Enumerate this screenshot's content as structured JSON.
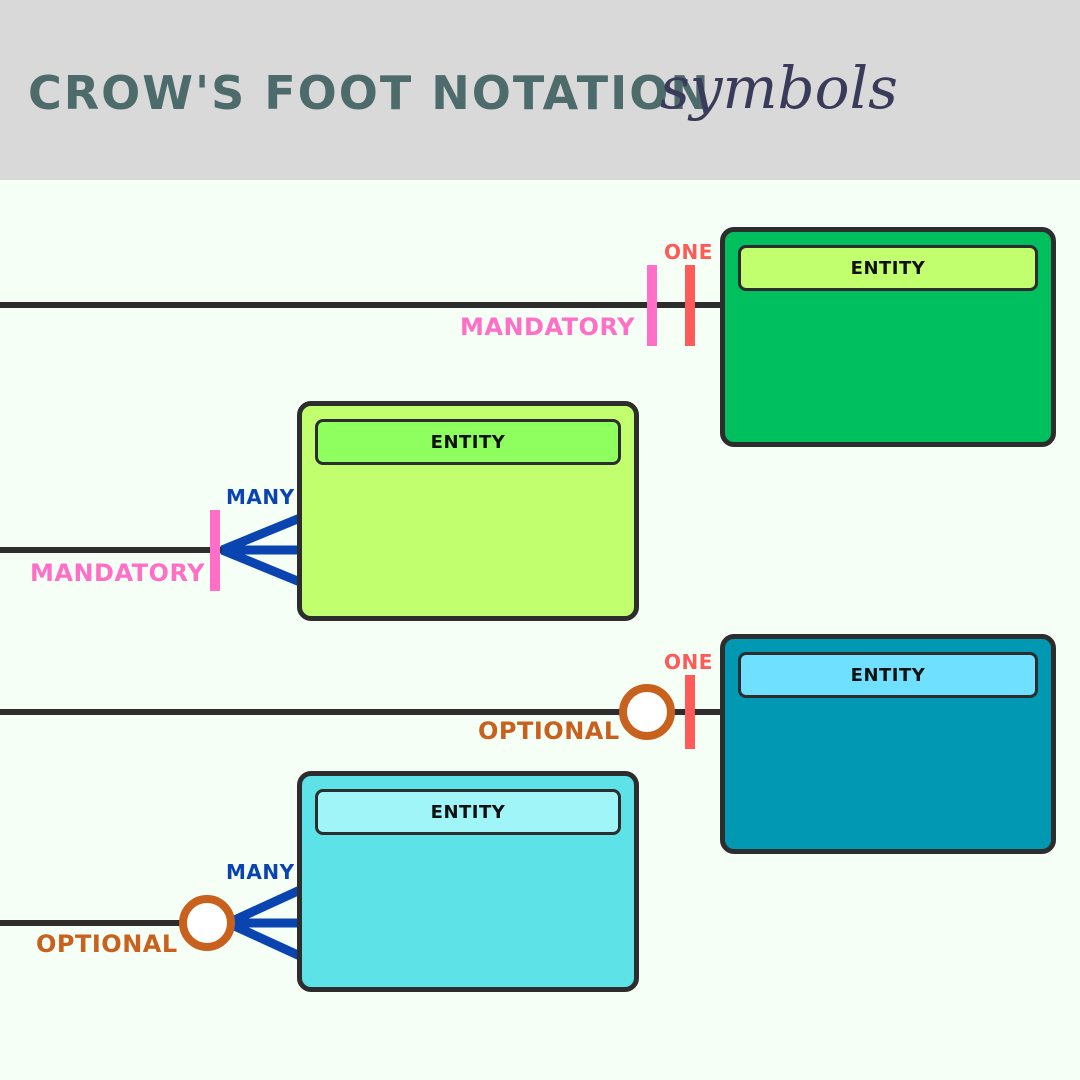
{
  "header": {
    "title": "CROW'S FOOT NOTATION",
    "script": "symbols"
  },
  "colors": {
    "header_bg": "#d9d9d9",
    "page_bg": "#f6fff5",
    "title": "#4d6b6b",
    "one": "#ff5a5a",
    "many": "#0a44b0",
    "mandatory": "#ff6ec7",
    "optional": "#c8601e",
    "line": "#2d2d2d"
  },
  "rows": [
    {
      "entity_label": "ENTITY",
      "entity_color": "#00bf5f",
      "header_color": "#c2ff6e",
      "cardinality": "ONE",
      "participation": "MANDATORY"
    },
    {
      "entity_label": "ENTITY",
      "entity_color": "#c2ff6e",
      "header_color": "#8eff5e",
      "cardinality": "MANY",
      "participation": "MANDATORY"
    },
    {
      "entity_label": "ENTITY",
      "entity_color": "#0098b3",
      "header_color": "#6fe0ff",
      "cardinality": "ONE",
      "participation": "OPTIONAL"
    },
    {
      "entity_label": "ENTITY",
      "entity_color": "#5de2e8",
      "header_color": "#9ff5f7",
      "cardinality": "MANY",
      "participation": "OPTIONAL"
    }
  ]
}
